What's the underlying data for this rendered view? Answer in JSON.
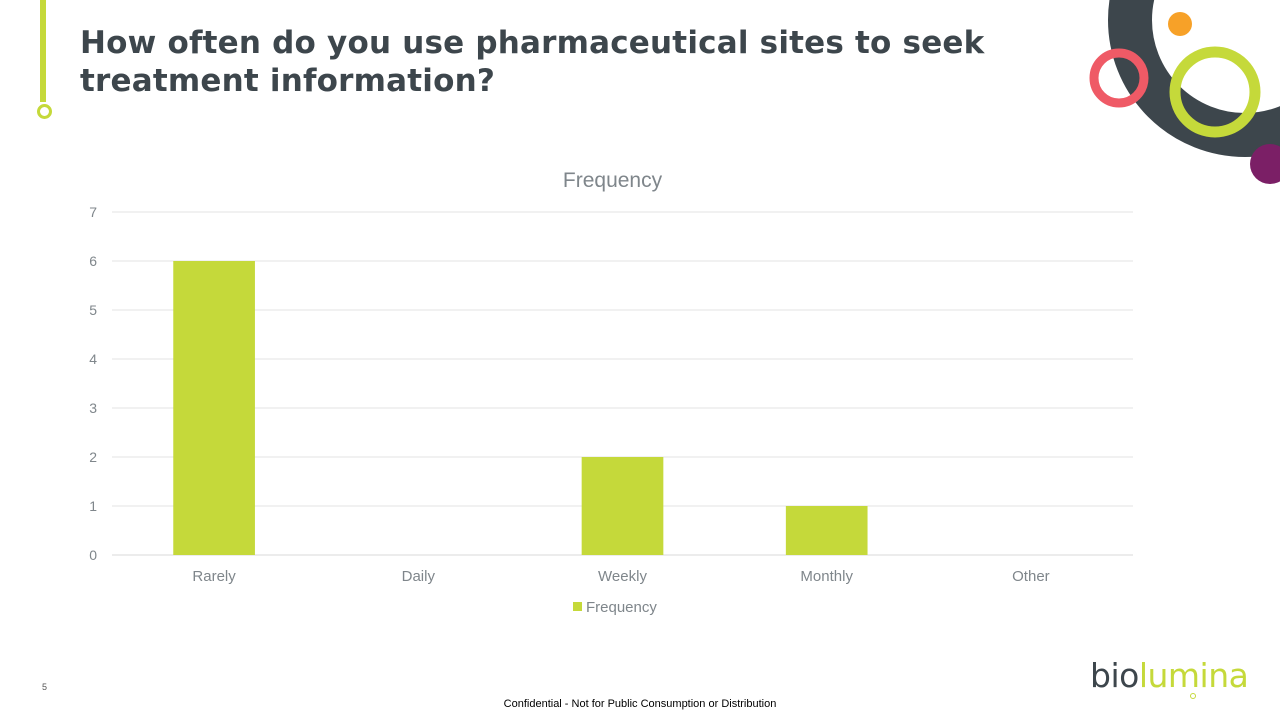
{
  "slide": {
    "title": "How often do you use pharmaceutical sites to seek treatment information?",
    "number": "5",
    "footer": "Confidential - Not for Public Consumption or Distribution"
  },
  "logo": {
    "part1": "bio",
    "part2": "lumina"
  },
  "colors": {
    "bar": "#c5d93a",
    "title": "#3d464c",
    "axis_text": "#7f868b",
    "gridline": "#e3e3e3",
    "deco_dark": "#3d464c",
    "deco_coral": "#ef5a66",
    "deco_orange": "#f7a128",
    "deco_lime": "#c5d93a",
    "deco_purple": "#7b1f66"
  },
  "chart_data": {
    "type": "bar",
    "title": "Frequency",
    "categories": [
      "Rarely",
      "Daily",
      "Weekly",
      "Monthly",
      "Other"
    ],
    "series": [
      {
        "name": "Frequency",
        "values": [
          6,
          0,
          2,
          1,
          0
        ]
      }
    ],
    "ylim": [
      0,
      7
    ],
    "yticks": [
      0,
      1,
      2,
      3,
      4,
      5,
      6,
      7
    ],
    "grid": true,
    "legend": "bottom"
  }
}
